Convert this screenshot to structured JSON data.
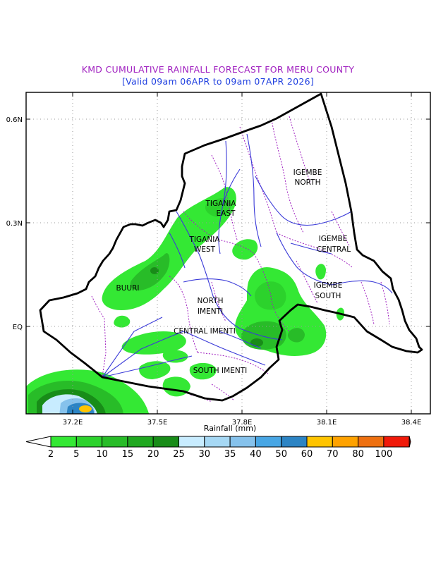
{
  "title": "KMD CUMULATIVE RAINFALL FORECAST FOR MERU COUNTY",
  "subtitle": "[Valid 09am 06APR to 09am 07APR 2026]",
  "colors": {
    "title": "#a020c0",
    "subtitle": "#2040e0",
    "boundary": "#000000",
    "rivers": "#3a3ad8",
    "subcounty_lines": "#a020c0"
  },
  "map": {
    "lon_range": [
      "37.07E",
      "38.45E"
    ],
    "lat_range": [
      "0.15S",
      "0.68N"
    ],
    "x_ticks": [
      "37.2E",
      "37.5E",
      "37.8E",
      "38.1E",
      "38.4E"
    ],
    "y_ticks": [
      "0.6N",
      "0.3N",
      "EQ"
    ],
    "grid": "dotted",
    "region_labels": [
      [
        "IGEMBE",
        "NORTH"
      ],
      [
        "TIGANIA",
        "EAST"
      ],
      [
        "TIGANIA",
        "WEST"
      ],
      [
        "IGEMBE",
        "CENTRAL"
      ],
      [
        "BUURI"
      ],
      [
        "IGEMBE",
        "SOUTH"
      ],
      [
        "NORTH",
        "IMENTI"
      ],
      [
        "CENTRAL IMENTI"
      ],
      [
        "SOUTH IMENTI"
      ]
    ]
  },
  "colorbar": {
    "label": "Rainfall (mm)",
    "ticks": [
      "2",
      "5",
      "10",
      "15",
      "20",
      "25",
      "30",
      "35",
      "40",
      "50",
      "60",
      "70",
      "80",
      "100"
    ],
    "colors": [
      "#34e834",
      "#2cd22c",
      "#28bc28",
      "#20a820",
      "#188c18",
      "#c8ecff",
      "#a6d8f4",
      "#86c2ec",
      "#48a6e4",
      "#2c84c4",
      "#ffc400",
      "#ffa200",
      "#ee7010",
      "#f01a0a",
      "#b40000"
    ]
  }
}
